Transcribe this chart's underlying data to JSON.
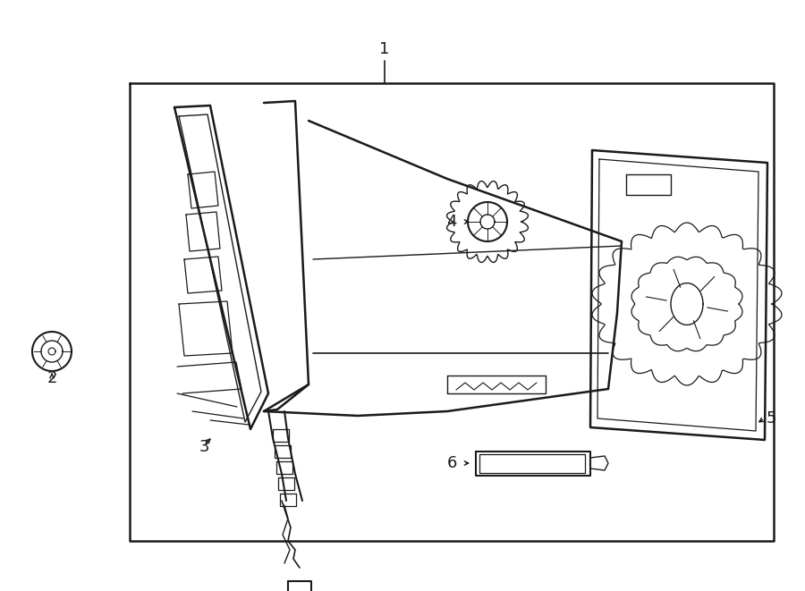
{
  "bg_color": "#ffffff",
  "line_color": "#1a1a1a",
  "fig_w": 9.0,
  "fig_h": 6.61,
  "dpi": 100,
  "font_size": 13
}
